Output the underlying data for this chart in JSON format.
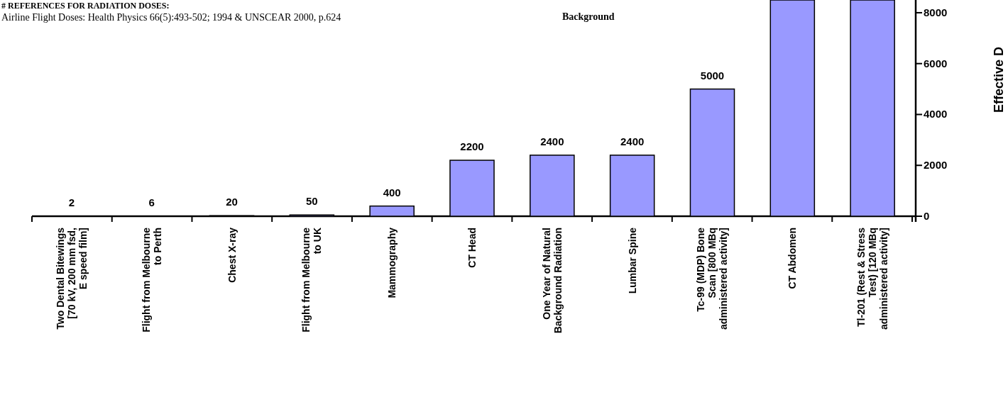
{
  "chart_data": {
    "type": "bar",
    "title": "# REFERENCES FOR RADIATION DOSES:",
    "ylabel": "Effective D",
    "annotations": [
      "Airline Flight Doses:  Health Physics 66(5):493-502; 1994  &  UNSCEAR 2000, p.624",
      "Background"
    ],
    "categories": [
      "Two Dental Bitewings\n[70 kV, 200 mm fsd,\nE speed film]",
      "Flight from Melbourne\nto Perth",
      "Chest X-ray",
      "Flight from Melbourne\nto UK",
      "Mammography",
      "CT Head",
      "One Year of Natural\nBackground Radiation",
      "Lumbar Spine",
      "Tc-99 (MDP) Bone\nScan [800 MBq\nadministered activity]",
      "CT Abdomen",
      "Tl-201 (Rest & Stress\nTest) [120 MBq\nadministered activity]"
    ],
    "values": [
      2,
      6,
      20,
      50,
      400,
      2200,
      2400,
      2400,
      5000,
      8500,
      8500
    ],
    "value_labels": [
      "2",
      "6",
      "20",
      "50",
      "400",
      "2200",
      "2400",
      "2400",
      "5000",
      null,
      null
    ],
    "color": "#9999ff",
    "ylim": [
      0,
      8500
    ],
    "yticks": [
      0,
      2000,
      4000,
      6000,
      8000
    ]
  }
}
